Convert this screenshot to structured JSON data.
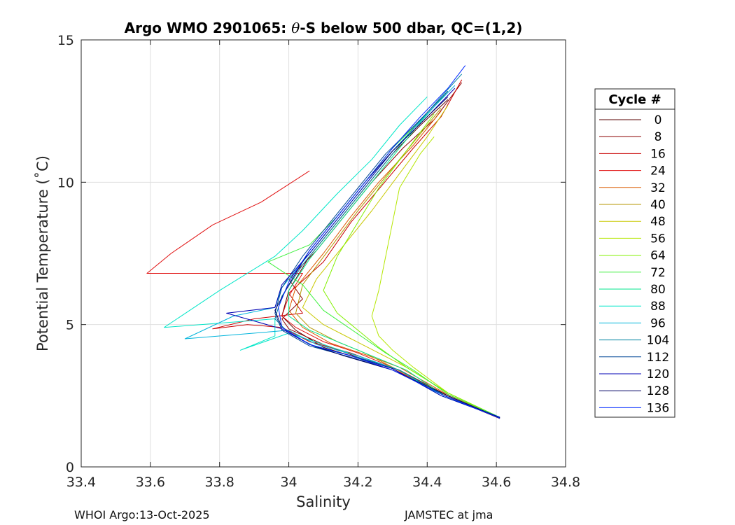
{
  "chart_data": {
    "type": "line",
    "title": "Argo WMO 2901065: θ-S below 500 dbar,  QC=(1,2)",
    "title_parts": {
      "prefix": "Argo WMO 2901065: ",
      "theta": "θ",
      "suffix": "-S below 500 dbar,  QC=(1,2)"
    },
    "xlabel": "Salinity",
    "ylabel": "Potential Temperature (˚C)",
    "xlim": [
      33.4,
      34.8
    ],
    "ylim": [
      0,
      15
    ],
    "xticks": [
      33.4,
      33.6,
      33.8,
      34.0,
      34.2,
      34.4,
      34.6,
      34.8
    ],
    "xtick_labels": [
      "33.4",
      "33.6",
      "33.8",
      "34",
      "34.2",
      "34.4",
      "34.6",
      "34.8"
    ],
    "yticks": [
      0,
      5,
      10,
      15
    ],
    "ytick_labels": [
      "0",
      "5",
      "10",
      "15"
    ],
    "grid": true,
    "legend": {
      "title": "Cycle #",
      "placement": "outside-right",
      "entries": [
        {
          "label": "0",
          "color": "#5a0000"
        },
        {
          "label": "8",
          "color": "#8c0000"
        },
        {
          "label": "16",
          "color": "#c80000"
        },
        {
          "label": "24",
          "color": "#e01010"
        },
        {
          "label": "32",
          "color": "#dc5a00"
        },
        {
          "label": "40",
          "color": "#b49600"
        },
        {
          "label": "48",
          "color": "#c8c800"
        },
        {
          "label": "56",
          "color": "#b4e600"
        },
        {
          "label": "64",
          "color": "#82f000"
        },
        {
          "label": "72",
          "color": "#3cf03c"
        },
        {
          "label": "80",
          "color": "#00e68c"
        },
        {
          "label": "88",
          "color": "#00e6c8"
        },
        {
          "label": "96",
          "color": "#00b4dc"
        },
        {
          "label": "104",
          "color": "#0082a0"
        },
        {
          "label": "112",
          "color": "#004696"
        },
        {
          "label": "120",
          "color": "#0000b4"
        },
        {
          "label": "128",
          "color": "#000064"
        },
        {
          "label": "136",
          "color": "#0028ff"
        }
      ]
    },
    "series": [
      {
        "name": "0",
        "color": "#5a0000",
        "points": [
          [
            34.61,
            1.7
          ],
          [
            34.45,
            2.5
          ],
          [
            34.3,
            3.4
          ],
          [
            34.18,
            3.9
          ],
          [
            34.1,
            4.2
          ],
          [
            34.02,
            4.8
          ],
          [
            33.98,
            5.3
          ],
          [
            34.0,
            6.2
          ],
          [
            34.06,
            7.4
          ],
          [
            34.14,
            8.6
          ],
          [
            34.22,
            9.8
          ],
          [
            34.3,
            11.0
          ],
          [
            34.38,
            12.0
          ],
          [
            34.46,
            12.9
          ]
        ]
      },
      {
        "name": "8",
        "color": "#8c0000",
        "points": [
          [
            34.61,
            1.72
          ],
          [
            34.46,
            2.5
          ],
          [
            34.32,
            3.4
          ],
          [
            34.2,
            3.85
          ],
          [
            34.1,
            4.3
          ],
          [
            34.0,
            4.85
          ],
          [
            33.98,
            5.2
          ],
          [
            34.04,
            5.9
          ],
          [
            34.0,
            6.6
          ],
          [
            34.08,
            7.6
          ],
          [
            34.16,
            8.8
          ],
          [
            34.24,
            10.0
          ],
          [
            34.33,
            11.2
          ],
          [
            34.42,
            12.2
          ],
          [
            34.5,
            13.5
          ]
        ]
      },
      {
        "name": "16",
        "color": "#c80000",
        "points": [
          [
            34.6,
            1.75
          ],
          [
            34.45,
            2.55
          ],
          [
            34.3,
            3.45
          ],
          [
            34.18,
            4.0
          ],
          [
            34.06,
            4.4
          ],
          [
            33.98,
            4.9
          ],
          [
            33.88,
            5.0
          ],
          [
            33.78,
            4.85
          ],
          [
            33.9,
            5.2
          ],
          [
            34.04,
            5.4
          ],
          [
            34.0,
            6.1
          ],
          [
            34.1,
            7.2
          ],
          [
            34.18,
            8.6
          ],
          [
            34.27,
            9.9
          ],
          [
            34.36,
            11.2
          ],
          [
            34.44,
            12.3
          ],
          [
            34.5,
            13.6
          ]
        ]
      },
      {
        "name": "24",
        "color": "#e01010",
        "points": [
          [
            34.6,
            1.76
          ],
          [
            34.44,
            2.6
          ],
          [
            34.3,
            3.5
          ],
          [
            34.2,
            4.0
          ],
          [
            34.1,
            4.4
          ],
          [
            34.02,
            4.9
          ],
          [
            33.98,
            5.3
          ],
          [
            34.0,
            6.0
          ],
          [
            34.04,
            6.8
          ],
          [
            33.59,
            6.8
          ],
          [
            33.66,
            7.5
          ],
          [
            33.78,
            8.5
          ],
          [
            33.92,
            9.3
          ],
          [
            34.06,
            10.4
          ]
        ]
      },
      {
        "name": "32",
        "color": "#dc5a00",
        "points": [
          [
            34.6,
            1.77
          ],
          [
            34.45,
            2.6
          ],
          [
            34.32,
            3.5
          ],
          [
            34.22,
            3.95
          ],
          [
            34.12,
            4.35
          ],
          [
            34.04,
            4.9
          ],
          [
            34.0,
            5.5
          ],
          [
            34.02,
            6.3
          ],
          [
            34.1,
            7.5
          ],
          [
            34.18,
            8.8
          ],
          [
            34.26,
            10.0
          ],
          [
            34.36,
            11.3
          ],
          [
            34.44,
            12.5
          ]
        ]
      },
      {
        "name": "40",
        "color": "#b49600",
        "points": [
          [
            34.6,
            1.78
          ],
          [
            34.44,
            2.6
          ],
          [
            34.3,
            3.5
          ],
          [
            34.22,
            4.0
          ],
          [
            34.14,
            4.4
          ],
          [
            34.06,
            4.9
          ],
          [
            34.02,
            5.4
          ],
          [
            34.04,
            6.4
          ],
          [
            34.12,
            7.7
          ],
          [
            34.2,
            9.0
          ],
          [
            34.28,
            10.2
          ],
          [
            34.36,
            11.4
          ],
          [
            34.44,
            12.6
          ]
        ]
      },
      {
        "name": "48",
        "color": "#c8c800",
        "points": [
          [
            34.6,
            1.79
          ],
          [
            34.46,
            2.6
          ],
          [
            34.34,
            3.5
          ],
          [
            34.26,
            4.0
          ],
          [
            34.18,
            4.5
          ],
          [
            34.1,
            5.0
          ],
          [
            34.04,
            5.6
          ],
          [
            34.08,
            6.6
          ],
          [
            34.16,
            7.8
          ],
          [
            34.24,
            9.0
          ],
          [
            34.32,
            10.3
          ],
          [
            34.4,
            11.6
          ],
          [
            34.46,
            12.7
          ]
        ]
      },
      {
        "name": "56",
        "color": "#b4e600",
        "points": [
          [
            34.6,
            1.8
          ],
          [
            34.46,
            2.6
          ],
          [
            34.36,
            3.5
          ],
          [
            34.3,
            4.1
          ],
          [
            34.26,
            4.6
          ],
          [
            34.24,
            5.3
          ],
          [
            34.26,
            6.2
          ],
          [
            34.28,
            7.4
          ],
          [
            34.3,
            8.6
          ],
          [
            34.32,
            9.8
          ],
          [
            34.38,
            11.0
          ],
          [
            34.42,
            11.6
          ]
        ]
      },
      {
        "name": "64",
        "color": "#82f000",
        "points": [
          [
            34.6,
            1.8
          ],
          [
            34.46,
            2.6
          ],
          [
            34.34,
            3.5
          ],
          [
            34.26,
            4.2
          ],
          [
            34.2,
            4.8
          ],
          [
            34.14,
            5.4
          ],
          [
            34.1,
            6.2
          ],
          [
            34.14,
            7.4
          ],
          [
            34.2,
            8.6
          ],
          [
            34.26,
            9.8
          ],
          [
            34.34,
            11.1
          ],
          [
            34.42,
            12.4
          ]
        ]
      },
      {
        "name": "72",
        "color": "#3cf03c",
        "points": [
          [
            34.6,
            1.8
          ],
          [
            34.46,
            2.55
          ],
          [
            34.36,
            3.4
          ],
          [
            34.28,
            4.0
          ],
          [
            34.22,
            4.5
          ],
          [
            34.16,
            5.0
          ],
          [
            34.1,
            5.5
          ],
          [
            34.04,
            6.4
          ],
          [
            33.94,
            7.2
          ],
          [
            34.06,
            7.8
          ],
          [
            34.14,
            8.8
          ],
          [
            34.22,
            10.0
          ],
          [
            34.3,
            11.2
          ],
          [
            34.4,
            12.4
          ]
        ]
      },
      {
        "name": "80",
        "color": "#00e68c",
        "points": [
          [
            34.6,
            1.8
          ],
          [
            34.45,
            2.5
          ],
          [
            34.34,
            3.4
          ],
          [
            34.24,
            3.9
          ],
          [
            34.16,
            4.3
          ],
          [
            34.06,
            4.8
          ],
          [
            34.0,
            5.3
          ],
          [
            34.0,
            6.2
          ],
          [
            34.06,
            7.3
          ],
          [
            34.14,
            8.5
          ],
          [
            34.22,
            9.7
          ],
          [
            34.3,
            10.9
          ],
          [
            34.38,
            12.1
          ],
          [
            34.46,
            13.2
          ]
        ]
      },
      {
        "name": "88",
        "color": "#00e6c8",
        "points": [
          [
            34.6,
            1.78
          ],
          [
            34.44,
            2.5
          ],
          [
            34.32,
            3.4
          ],
          [
            34.2,
            3.9
          ],
          [
            34.1,
            4.3
          ],
          [
            34.0,
            4.7
          ],
          [
            33.86,
            4.1
          ],
          [
            33.96,
            4.6
          ],
          [
            33.96,
            5.2
          ],
          [
            33.64,
            4.9
          ],
          [
            33.8,
            6.2
          ],
          [
            33.96,
            7.4
          ],
          [
            34.04,
            8.3
          ],
          [
            34.14,
            9.6
          ],
          [
            34.24,
            10.8
          ],
          [
            34.32,
            12.0
          ],
          [
            34.4,
            13.0
          ]
        ]
      },
      {
        "name": "96",
        "color": "#00b4dc",
        "points": [
          [
            34.6,
            1.77
          ],
          [
            34.45,
            2.5
          ],
          [
            34.32,
            3.4
          ],
          [
            34.2,
            3.9
          ],
          [
            34.08,
            4.3
          ],
          [
            34.0,
            4.8
          ],
          [
            33.7,
            4.5
          ],
          [
            33.84,
            5.3
          ],
          [
            33.96,
            5.6
          ],
          [
            33.98,
            6.3
          ],
          [
            34.06,
            7.5
          ],
          [
            34.14,
            8.7
          ],
          [
            34.22,
            9.9
          ],
          [
            34.3,
            11.1
          ],
          [
            34.4,
            12.4
          ],
          [
            34.48,
            13.4
          ]
        ]
      },
      {
        "name": "104",
        "color": "#0082a0",
        "points": [
          [
            34.61,
            1.75
          ],
          [
            34.45,
            2.5
          ],
          [
            34.32,
            3.4
          ],
          [
            34.2,
            3.85
          ],
          [
            34.08,
            4.2
          ],
          [
            34.0,
            4.7
          ],
          [
            33.96,
            5.2
          ],
          [
            33.98,
            6.0
          ],
          [
            34.04,
            7.1
          ],
          [
            34.12,
            8.3
          ],
          [
            34.2,
            9.5
          ],
          [
            34.28,
            10.7
          ],
          [
            34.36,
            11.9
          ],
          [
            34.44,
            13.0
          ],
          [
            34.5,
            13.8
          ]
        ]
      },
      {
        "name": "112",
        "color": "#004696",
        "points": [
          [
            34.61,
            1.74
          ],
          [
            34.45,
            2.5
          ],
          [
            34.3,
            3.4
          ],
          [
            34.18,
            3.85
          ],
          [
            34.06,
            4.25
          ],
          [
            33.98,
            4.8
          ],
          [
            33.96,
            5.4
          ],
          [
            33.98,
            6.3
          ],
          [
            34.04,
            7.4
          ],
          [
            34.12,
            8.6
          ],
          [
            34.2,
            9.8
          ],
          [
            34.28,
            11.0
          ],
          [
            34.38,
            12.2
          ],
          [
            34.46,
            13.2
          ]
        ]
      },
      {
        "name": "120",
        "color": "#0000b4",
        "points": [
          [
            34.61,
            1.73
          ],
          [
            34.44,
            2.5
          ],
          [
            34.3,
            3.45
          ],
          [
            34.18,
            3.9
          ],
          [
            34.06,
            4.3
          ],
          [
            33.98,
            4.85
          ],
          [
            33.82,
            5.4
          ],
          [
            33.96,
            5.6
          ],
          [
            33.98,
            6.4
          ],
          [
            34.06,
            7.5
          ],
          [
            34.14,
            8.7
          ],
          [
            34.22,
            9.9
          ],
          [
            34.3,
            11.1
          ],
          [
            34.4,
            12.3
          ],
          [
            34.48,
            13.3
          ]
        ]
      },
      {
        "name": "128",
        "color": "#000064",
        "points": [
          [
            34.61,
            1.72
          ],
          [
            34.46,
            2.5
          ],
          [
            34.3,
            3.4
          ],
          [
            34.16,
            3.9
          ],
          [
            34.06,
            4.3
          ],
          [
            33.98,
            4.9
          ],
          [
            33.96,
            5.5
          ],
          [
            34.0,
            6.4
          ],
          [
            34.06,
            7.6
          ],
          [
            34.14,
            8.8
          ],
          [
            34.22,
            10.0
          ],
          [
            34.3,
            11.1
          ],
          [
            34.4,
            12.3
          ],
          [
            34.46,
            13.0
          ]
        ]
      },
      {
        "name": "136",
        "color": "#0028ff",
        "points": [
          [
            34.61,
            1.71
          ],
          [
            34.45,
            2.5
          ],
          [
            34.3,
            3.4
          ],
          [
            34.18,
            3.9
          ],
          [
            34.06,
            4.3
          ],
          [
            33.98,
            4.9
          ],
          [
            33.97,
            5.6
          ],
          [
            34.0,
            6.5
          ],
          [
            34.06,
            7.6
          ],
          [
            34.14,
            8.8
          ],
          [
            34.22,
            10.0
          ],
          [
            34.3,
            11.2
          ],
          [
            34.38,
            12.3
          ],
          [
            34.46,
            13.3
          ],
          [
            34.51,
            14.1
          ]
        ]
      }
    ],
    "footer_left": "WHOI Argo:13-Oct-2025",
    "footer_right": "JAMSTEC at jma"
  }
}
